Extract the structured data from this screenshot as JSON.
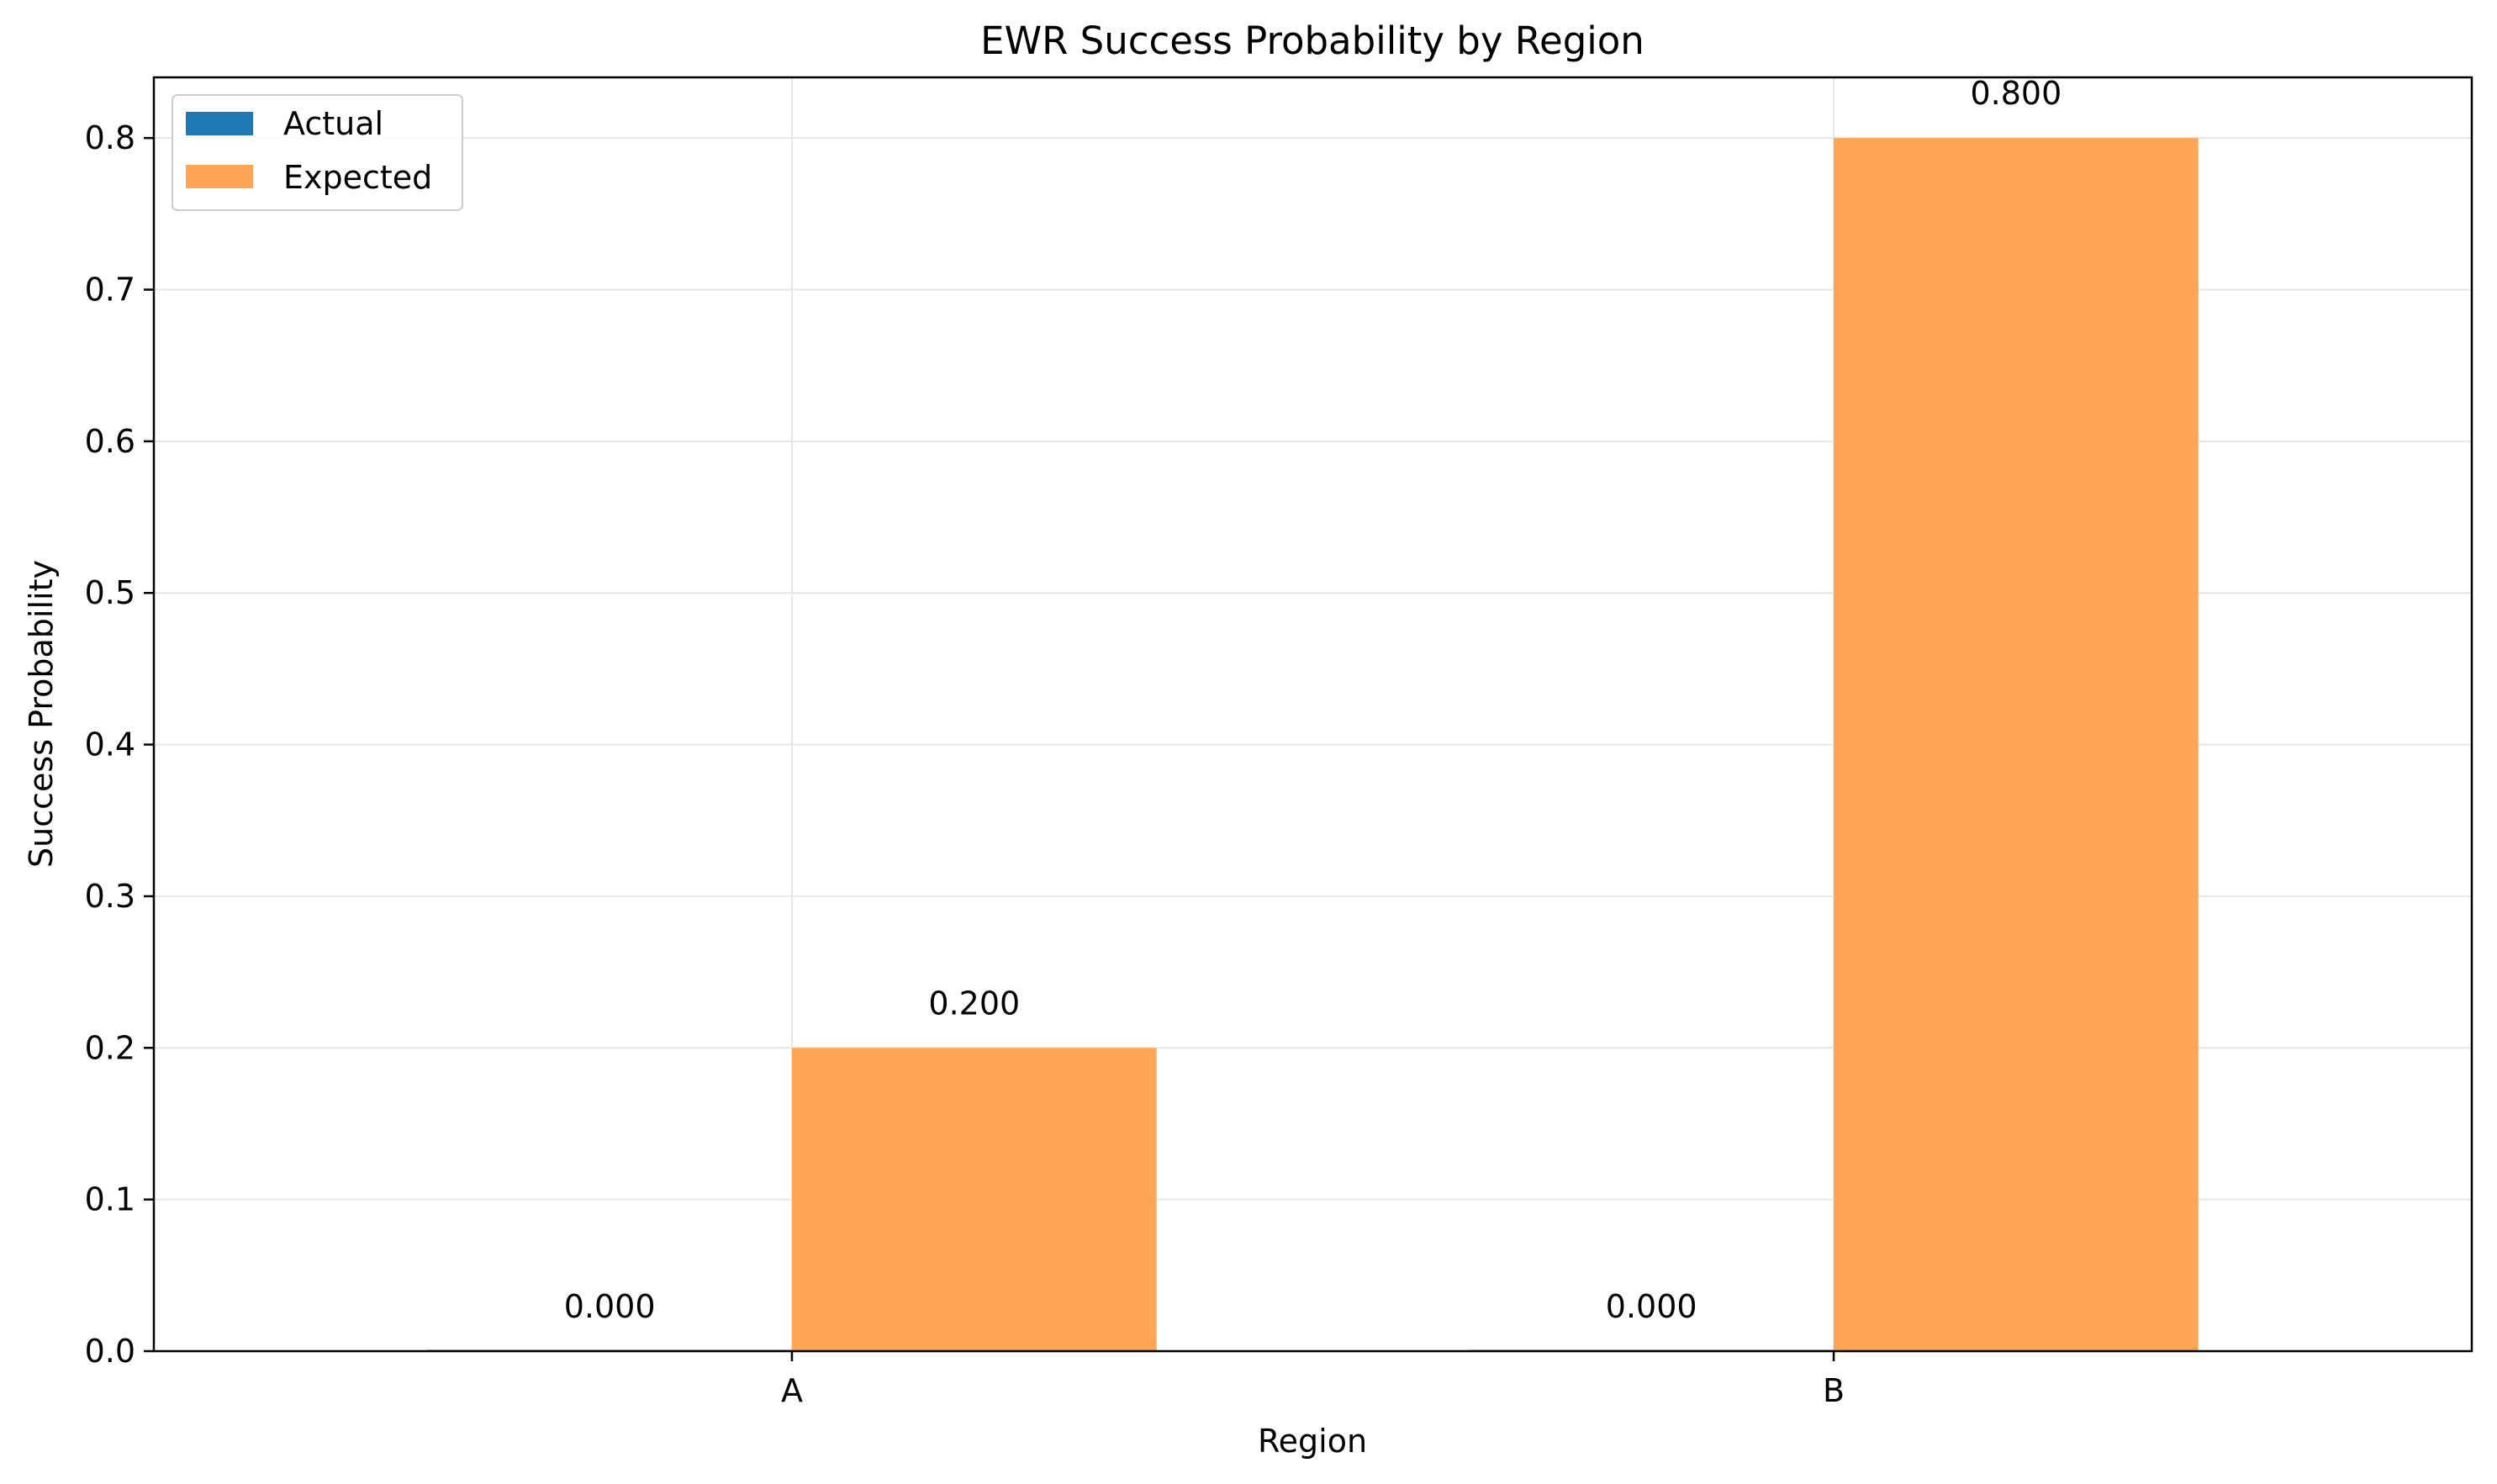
{
  "chart_data": {
    "type": "bar",
    "title": "EWR Success Probability by Region",
    "xlabel": "Region",
    "ylabel": "Success Probability",
    "categories": [
      "A",
      "B"
    ],
    "series": [
      {
        "name": "Actual",
        "values": [
          0.0,
          0.0
        ],
        "labels": [
          "0.000",
          "0.000"
        ],
        "color": "#1f77b4"
      },
      {
        "name": "Expected",
        "values": [
          0.2,
          0.8
        ],
        "labels": [
          "0.200",
          "0.800"
        ],
        "color": "#ffa555"
      }
    ],
    "ylim": [
      0,
      0.84
    ],
    "yticks": [
      0.0,
      0.1,
      0.2,
      0.3,
      0.4,
      0.5,
      0.6,
      0.7,
      0.8
    ],
    "ytick_labels": [
      "0.0",
      "0.1",
      "0.2",
      "0.3",
      "0.4",
      "0.5",
      "0.6",
      "0.7",
      "0.8"
    ],
    "grid": true,
    "legend_position": "top-left"
  }
}
